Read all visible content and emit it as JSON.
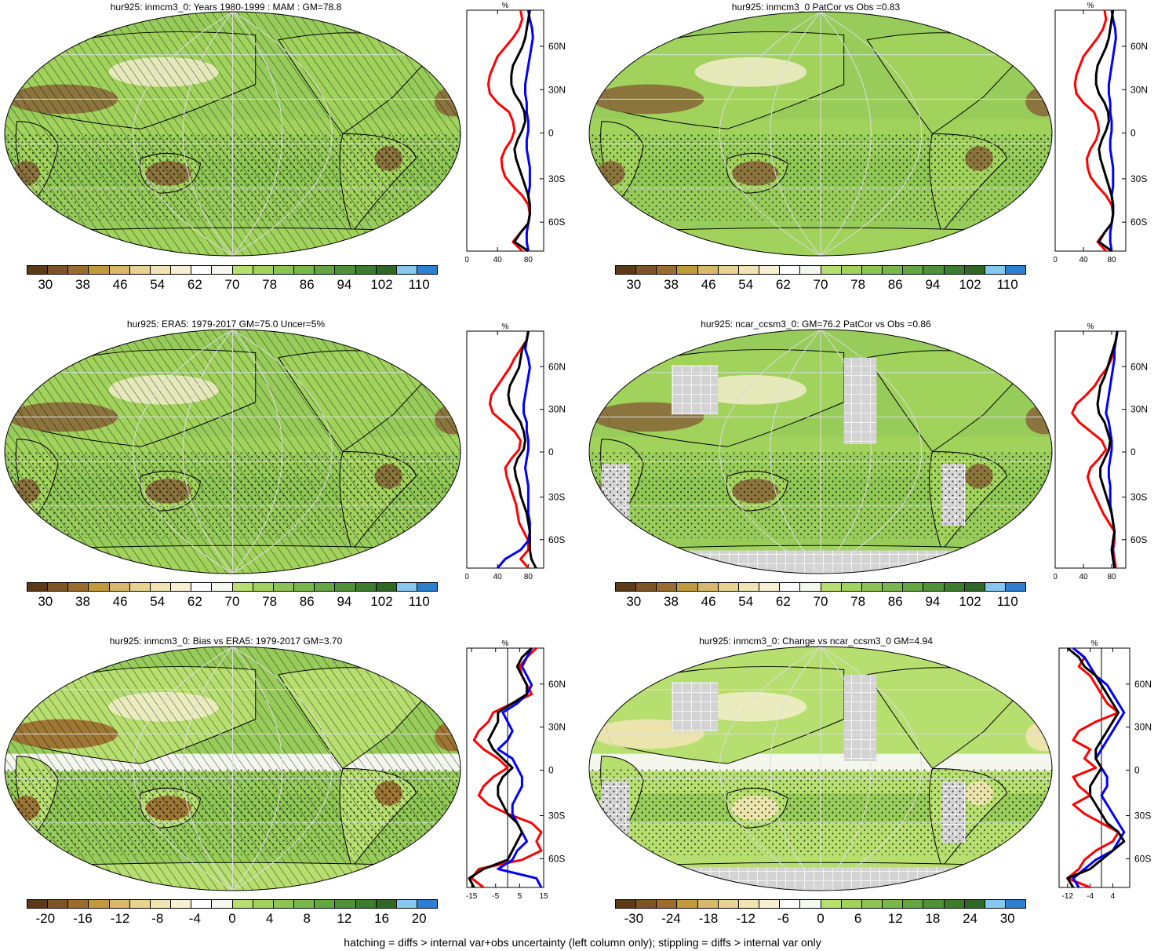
{
  "footer": "hatching = diffs > internal var+obs uncertainty (left column only); stippling = diffs > internal var only",
  "colors": {
    "abs": [
      "#5c3a16",
      "#7d5423",
      "#9c6c2e",
      "#c39a3b",
      "#d7b76a",
      "#e7d28f",
      "#f1e4b3",
      "#f6efd2",
      "#ffffff",
      "#f4f7ee",
      "#b7df6f",
      "#a0d25c",
      "#8cc453",
      "#78b749",
      "#64a63f",
      "#4f9236",
      "#3b7d2c",
      "#2e6824",
      "#86c7f0",
      "#2e7fd2"
    ],
    "land_brown": "#8a6a3a",
    "sea_green": "#97cc5a",
    "grey_mask": "#d3d3d3"
  },
  "panels": [
    {
      "title": "hur925: inmcm3_0: Years 1980-1999 : MAM : GM=78.8",
      "colorbar_labels": [
        "30",
        "38",
        "46",
        "54",
        "62",
        "70",
        "78",
        "86",
        "94",
        "102",
        "110"
      ],
      "profile": {
        "unit": "%",
        "xticks": [
          "0",
          "40",
          "80"
        ],
        "xlim": [
          0,
          100
        ],
        "lat_labels": [
          "60N",
          "30N",
          "0",
          "30S",
          "60S"
        ],
        "lines": [
          {
            "color": "#ff0000",
            "x": [
              70,
              72,
              68,
              60,
              50,
              40,
              35,
              30,
              28,
              30,
              40,
              55,
              60,
              62,
              58,
              50,
              45,
              46,
              50,
              60,
              72,
              80,
              82,
              80,
              70,
              60,
              72
            ]
          },
          {
            "color": "#0000ff",
            "x": [
              80,
              82,
              85,
              86,
              84,
              82,
              80,
              78,
              76,
              76,
              78,
              78,
              80,
              80,
              78,
              78,
              80,
              82,
              82,
              82,
              80,
              82,
              82,
              80,
              78,
              78,
              80
            ]
          },
          {
            "color": "#000000",
            "x": [
              82,
              80,
              78,
              76,
              72,
              66,
              60,
              58,
              58,
              62,
              70,
              75,
              76,
              72,
              66,
              62,
              64,
              68,
              72,
              76,
              80,
              82,
              82,
              80,
              70,
              62,
              80
            ]
          }
        ]
      },
      "hatched": true,
      "stipple": true,
      "grey": false
    },
    {
      "title": "hur925: inmcm3_0 PatCor vs Obs =0.83",
      "colorbar_labels": [
        "30",
        "38",
        "46",
        "54",
        "62",
        "70",
        "78",
        "86",
        "94",
        "102",
        "110"
      ],
      "profile": {
        "unit": "%",
        "xticks": [
          "0",
          "40",
          "80"
        ],
        "xlim": [
          0,
          100
        ],
        "lat_labels": [
          "60N",
          "30N",
          "0",
          "30S",
          "60S"
        ],
        "lines": [
          {
            "color": "#ff0000",
            "x": [
              70,
              72,
              68,
              60,
              50,
              40,
              35,
              30,
              28,
              30,
              40,
              55,
              60,
              62,
              58,
              50,
              45,
              46,
              50,
              60,
              72,
              80,
              82,
              80,
              70,
              60,
              72
            ]
          },
          {
            "color": "#0000ff",
            "x": [
              80,
              82,
              85,
              86,
              84,
              82,
              80,
              78,
              76,
              76,
              78,
              78,
              80,
              80,
              78,
              78,
              80,
              82,
              82,
              82,
              80,
              82,
              82,
              80,
              78,
              78,
              80
            ]
          },
          {
            "color": "#000000",
            "x": [
              82,
              80,
              78,
              76,
              72,
              66,
              60,
              58,
              58,
              62,
              70,
              75,
              76,
              72,
              66,
              62,
              64,
              68,
              72,
              76,
              80,
              82,
              82,
              80,
              70,
              62,
              80
            ]
          }
        ]
      },
      "hatched": false,
      "stipple": true,
      "grey": false
    },
    {
      "title": "hur925: ERA5: 1979-2017 GM=75.0 Uncer=5%",
      "colorbar_labels": [
        "30",
        "38",
        "46",
        "54",
        "62",
        "70",
        "78",
        "86",
        "94",
        "102",
        "110"
      ],
      "profile": {
        "unit": "%",
        "xticks": [
          "0",
          "40",
          "80"
        ],
        "xlim": [
          0,
          100
        ],
        "lat_labels": [
          "60N",
          "30N",
          "0",
          "30S",
          "60S"
        ],
        "lines": [
          {
            "color": "#ff0000",
            "x": [
              80,
              78,
              70,
              62,
              56,
              48,
              40,
              32,
              30,
              34,
              48,
              62,
              70,
              68,
              58,
              50,
              52,
              56,
              60,
              64,
              66,
              68,
              74,
              80,
              80,
              70,
              80
            ]
          },
          {
            "color": "#0000ff",
            "x": [
              80,
              78,
              76,
              80,
              82,
              80,
              78,
              76,
              74,
              74,
              78,
              78,
              80,
              80,
              78,
              76,
              78,
              80,
              80,
              80,
              80,
              82,
              82,
              80,
              70,
              50,
              40
            ]
          },
          {
            "color": "#000000",
            "x": [
              80,
              78,
              72,
              70,
              68,
              62,
              56,
              54,
              56,
              62,
              70,
              74,
              76,
              74,
              66,
              62,
              64,
              68,
              70,
              74,
              78,
              80,
              82,
              82,
              82,
              84,
              90
            ]
          }
        ]
      },
      "hatched": true,
      "stipple": true,
      "grey": false
    },
    {
      "title": "hur925: ncar_ccsm3_0: GM=76.2 PatCor vs Obs =0.86",
      "colorbar_labels": [
        "30",
        "38",
        "46",
        "54",
        "62",
        "70",
        "78",
        "86",
        "94",
        "102",
        "110"
      ],
      "profile": {
        "unit": "%",
        "xticks": [
          "0",
          "40",
          "80"
        ],
        "xlim": [
          0,
          100
        ],
        "lat_labels": [
          "60N",
          "30N",
          "0",
          "30S",
          "60S"
        ],
        "lines": [
          {
            "color": "#ff0000",
            "x": [
              88,
              86,
              84,
              80,
              74,
              64,
              56,
              44,
              30,
              24,
              34,
              50,
              66,
              72,
              62,
              50,
              46,
              50,
              56,
              62,
              68,
              76,
              84,
              84,
              82,
              84,
              86
            ]
          },
          {
            "color": "#0000ff",
            "x": [
              88,
              86,
              84,
              84,
              82,
              80,
              78,
              76,
              74,
              72,
              76,
              78,
              80,
              80,
              78,
              76,
              76,
              78,
              78,
              78,
              80,
              82,
              84,
              82,
              82,
              82,
              84
            ]
          },
          {
            "color": "#000000",
            "x": [
              88,
              86,
              82,
              78,
              74,
              70,
              64,
              62,
              60,
              62,
              70,
              74,
              78,
              76,
              70,
              64,
              64,
              68,
              72,
              76,
              80,
              82,
              84,
              82,
              80,
              82,
              84
            ]
          }
        ]
      },
      "hatched": false,
      "stipple": true,
      "grey": true
    },
    {
      "title": "hur925: inmcm3_0: Bias vs ERA5: 1979-2017 GM=3.70",
      "colorbar_labels": [
        "-20",
        "-16",
        "-12",
        "-8",
        "-4",
        "0",
        "4",
        "8",
        "12",
        "16",
        "20"
      ],
      "profile": {
        "unit": "%",
        "xticks": [
          "-15",
          "-5",
          "5",
          "15"
        ],
        "xlim": [
          -17,
          15
        ],
        "lat_labels": [
          "60N",
          "30N",
          "0",
          "30S",
          "60S"
        ],
        "lines": [
          {
            "color": "#ff0000",
            "x": [
              12,
              8,
              5,
              6,
              8,
              10,
              2,
              -6,
              -8,
              -12,
              -14,
              -10,
              -4,
              0,
              -6,
              -10,
              -12,
              -8,
              0,
              10,
              14,
              12,
              14,
              6,
              -12,
              -15,
              -10
            ]
          },
          {
            "color": "#0000ff",
            "x": [
              10,
              8,
              6,
              8,
              10,
              8,
              4,
              -2,
              0,
              2,
              0,
              -4,
              2,
              4,
              6,
              6,
              4,
              2,
              2,
              4,
              6,
              8,
              4,
              2,
              -4,
              12,
              14
            ]
          },
          {
            "color": "#000000",
            "x": [
              10,
              6,
              4,
              6,
              8,
              8,
              2,
              -4,
              -4,
              -6,
              -8,
              -6,
              -2,
              2,
              -2,
              -4,
              -4,
              -2,
              0,
              4,
              6,
              4,
              2,
              0,
              -10,
              -16,
              -14
            ]
          }
        ]
      },
      "hatched": true,
      "stipple": true,
      "grey": false
    },
    {
      "title": "hur925: inmcm3_0: Change vs ncar_ccsm3_0 GM=4.94",
      "colorbar_labels": [
        "-30",
        "-24",
        "-18",
        "-12",
        "-6",
        "0",
        "6",
        "12",
        "18",
        "24",
        "30"
      ],
      "profile": {
        "unit": "%",
        "xticks": [
          "-12",
          "-4",
          "4"
        ],
        "xlim": [
          -15,
          10
        ],
        "lat_labels": [
          "60N",
          "30N",
          "0",
          "30S",
          "60S"
        ],
        "lines": [
          {
            "color": "#ff0000",
            "x": [
              -10,
              -6,
              -8,
              -4,
              -2,
              0,
              2,
              6,
              -2,
              -8,
              -10,
              -4,
              -6,
              -2,
              -10,
              -8,
              -4,
              -10,
              -6,
              0,
              6,
              4,
              -2,
              -6,
              -8,
              -12,
              -4
            ]
          },
          {
            "color": "#0000ff",
            "x": [
              -10,
              -6,
              -4,
              -2,
              2,
              4,
              6,
              8,
              6,
              4,
              2,
              0,
              -2,
              0,
              2,
              2,
              0,
              2,
              4,
              6,
              8,
              6,
              4,
              -2,
              -6,
              -10,
              -8
            ]
          },
          {
            "color": "#000000",
            "x": [
              -12,
              -8,
              -6,
              -2,
              0,
              2,
              4,
              6,
              4,
              2,
              0,
              -2,
              -2,
              0,
              -2,
              -4,
              -4,
              -2,
              0,
              2,
              6,
              8,
              4,
              0,
              -4,
              -12,
              -10
            ]
          }
        ]
      },
      "hatched": false,
      "stipple": true,
      "grey": true
    }
  ]
}
